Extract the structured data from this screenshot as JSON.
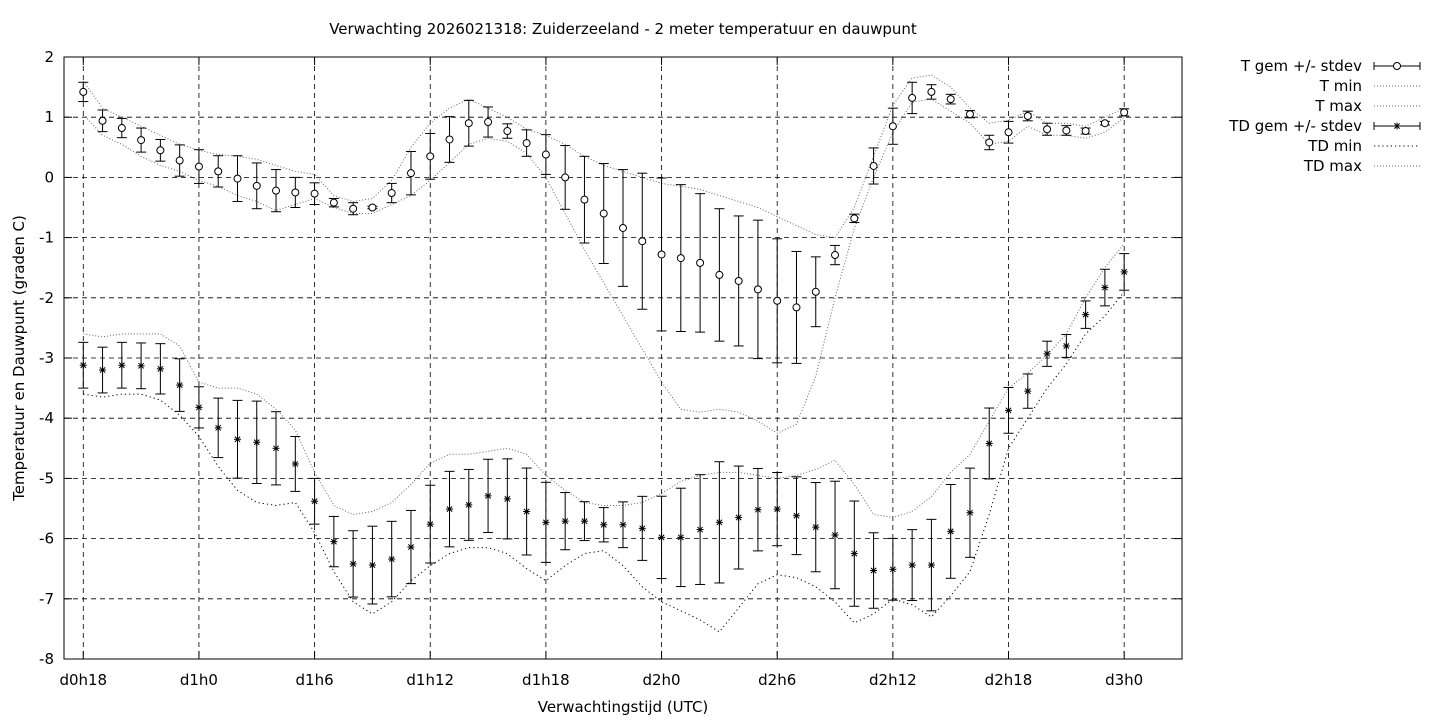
{
  "chart_data": {
    "type": "line",
    "title": "Verwachting 2026021318: Zuiderzeeland - 2 meter temperatuur en dauwpunt",
    "xlabel": "Verwachtingstijd (UTC)",
    "ylabel": "Temperatuur en Dauwpunt (graden C)",
    "xlim": [
      -1,
      57
    ],
    "ylim": [
      -8,
      2
    ],
    "y_ticks": [
      -8,
      -7,
      -6,
      -5,
      -4,
      -3,
      -2,
      -1,
      0,
      1,
      2
    ],
    "x_ticks": [
      {
        "x": 0,
        "label": "d0h18"
      },
      {
        "x": 6,
        "label": "d1h0"
      },
      {
        "x": 12,
        "label": "d1h6"
      },
      {
        "x": 18,
        "label": "d1h12"
      },
      {
        "x": 24,
        "label": "d1h18"
      },
      {
        "x": 30,
        "label": "d2h0"
      },
      {
        "x": 36,
        "label": "d2h6"
      },
      {
        "x": 42,
        "label": "d2h12"
      },
      {
        "x": 48,
        "label": "d2h18"
      },
      {
        "x": 54,
        "label": "d3h0"
      }
    ],
    "grid": true,
    "legend_position": "outside-top-right",
    "series": [
      {
        "name": "T gem +/- stdev",
        "style": "errorbar-circle",
        "x": [
          0,
          1,
          2,
          3,
          4,
          5,
          6,
          7,
          8,
          9,
          10,
          11,
          12,
          13,
          14,
          15,
          16,
          17,
          18,
          19,
          20,
          21,
          22,
          23,
          24,
          25,
          26,
          27,
          28,
          29,
          30,
          31,
          32,
          33,
          34,
          35,
          36,
          37,
          38,
          39,
          40,
          41,
          42,
          43,
          44,
          45,
          46,
          47,
          48,
          49,
          50,
          51,
          52,
          53,
          54
        ],
        "values": [
          1.42,
          0.94,
          0.82,
          0.62,
          0.45,
          0.28,
          0.18,
          0.1,
          -0.02,
          -0.14,
          -0.22,
          -0.25,
          -0.27,
          -0.42,
          -0.52,
          -0.5,
          -0.26,
          0.07,
          0.35,
          0.63,
          0.9,
          0.92,
          0.77,
          0.57,
          0.38,
          0.0,
          -0.37,
          -0.6,
          -0.84,
          -1.06,
          -1.28,
          -1.34,
          -1.42,
          -1.62,
          -1.72,
          -1.86,
          -2.05,
          -2.16,
          -1.9,
          -1.29,
          -0.68,
          0.19,
          0.85,
          1.32,
          1.42,
          1.3,
          1.05,
          0.58,
          0.75,
          1.02,
          0.8,
          0.78,
          0.77,
          0.9,
          1.08
        ],
        "stdev": [
          0.16,
          0.18,
          0.16,
          0.2,
          0.18,
          0.26,
          0.28,
          0.26,
          0.38,
          0.38,
          0.35,
          0.25,
          0.18,
          0.07,
          0.1,
          0.02,
          0.16,
          0.36,
          0.38,
          0.38,
          0.38,
          0.25,
          0.12,
          0.22,
          0.33,
          0.53,
          0.72,
          0.83,
          0.97,
          1.13,
          1.27,
          1.22,
          1.15,
          1.1,
          1.08,
          1.15,
          1.03,
          0.93,
          0.58,
          0.16,
          0.07,
          0.3,
          0.3,
          0.26,
          0.12,
          0.08,
          0.06,
          0.12,
          0.18,
          0.08,
          0.1,
          0.08,
          0.05,
          0.03,
          0.06
        ]
      },
      {
        "name": "T min",
        "style": "dotted",
        "x": [
          0,
          1,
          2,
          3,
          4,
          5,
          6,
          7,
          8,
          9,
          10,
          11,
          12,
          13,
          14,
          15,
          16,
          17,
          18,
          19,
          20,
          21,
          22,
          23,
          24,
          25,
          26,
          27,
          28,
          29,
          30,
          31,
          32,
          33,
          34,
          35,
          36,
          37,
          38,
          39,
          40,
          41,
          42,
          43,
          44,
          45,
          46,
          47,
          48,
          49,
          50,
          51,
          52,
          53,
          54
        ],
        "values": [
          1.05,
          0.7,
          0.55,
          0.35,
          0.2,
          0.1,
          -0.05,
          -0.15,
          -0.3,
          -0.4,
          -0.55,
          -0.45,
          -0.35,
          -0.5,
          -0.6,
          -0.6,
          -0.45,
          -0.3,
          -0.05,
          0.25,
          0.55,
          0.65,
          0.6,
          0.4,
          0.0,
          -0.6,
          -1.2,
          -1.75,
          -2.3,
          -2.85,
          -3.4,
          -3.85,
          -3.9,
          -3.85,
          -3.9,
          -4.05,
          -4.25,
          -4.1,
          -3.3,
          -2.0,
          -0.85,
          0.0,
          0.75,
          1.25,
          1.3,
          1.1,
          0.9,
          0.55,
          0.6,
          0.85,
          0.7,
          0.7,
          0.65,
          0.75,
          1.0
        ]
      },
      {
        "name": "T max",
        "style": "dotted",
        "x": [
          0,
          1,
          2,
          3,
          4,
          5,
          6,
          7,
          8,
          9,
          10,
          11,
          12,
          13,
          14,
          15,
          16,
          17,
          18,
          19,
          20,
          21,
          22,
          23,
          24,
          25,
          26,
          27,
          28,
          29,
          30,
          31,
          32,
          33,
          34,
          35,
          36,
          37,
          38,
          39,
          40,
          41,
          42,
          43,
          44,
          45,
          46,
          47,
          48,
          49,
          50,
          51,
          52,
          53,
          54
        ],
        "values": [
          1.6,
          1.15,
          1.0,
          0.85,
          0.7,
          0.55,
          0.45,
          0.38,
          0.35,
          0.3,
          0.2,
          0.1,
          0.05,
          -0.3,
          -0.4,
          -0.35,
          -0.05,
          0.5,
          0.9,
          1.15,
          1.3,
          1.15,
          1.0,
          0.8,
          0.7,
          0.55,
          0.35,
          0.2,
          0.1,
          0.0,
          -0.1,
          -0.15,
          -0.2,
          -0.3,
          -0.4,
          -0.5,
          -0.65,
          -0.8,
          -0.95,
          -1.0,
          -0.5,
          0.35,
          1.2,
          1.65,
          1.7,
          1.5,
          1.15,
          0.9,
          0.95,
          1.1,
          0.9,
          0.9,
          0.85,
          1.0,
          1.15
        ]
      },
      {
        "name": "TD gem +/- stdev",
        "style": "errorbar-star",
        "x": [
          0,
          1,
          2,
          3,
          4,
          5,
          6,
          7,
          8,
          9,
          10,
          11,
          12,
          13,
          14,
          15,
          16,
          17,
          18,
          19,
          20,
          21,
          22,
          23,
          24,
          25,
          26,
          27,
          28,
          29,
          30,
          31,
          32,
          33,
          34,
          35,
          36,
          37,
          38,
          39,
          40,
          41,
          42,
          43,
          44,
          45,
          46,
          47,
          48,
          49,
          50,
          51,
          52,
          53,
          54
        ],
        "values": [
          -3.12,
          -3.2,
          -3.12,
          -3.13,
          -3.18,
          -3.45,
          -3.82,
          -4.16,
          -4.35,
          -4.4,
          -4.5,
          -4.76,
          -5.38,
          -6.05,
          -6.42,
          -6.44,
          -6.34,
          -6.14,
          -5.76,
          -5.51,
          -5.44,
          -5.29,
          -5.34,
          -5.55,
          -5.73,
          -5.71,
          -5.71,
          -5.77,
          -5.77,
          -5.83,
          -5.98,
          -5.98,
          -5.85,
          -5.73,
          -5.65,
          -5.52,
          -5.51,
          -5.62,
          -5.81,
          -5.94,
          -6.25,
          -6.53,
          -6.51,
          -6.44,
          -6.44,
          -5.88,
          -5.57,
          -4.42,
          -3.87,
          -3.55,
          -2.93,
          -2.8,
          -2.28,
          -1.83,
          -1.57
        ]
      },
      {
        "name": "TD min",
        "style": "dotted",
        "x": [
          0,
          1,
          2,
          3,
          4,
          5,
          6,
          7,
          8,
          9,
          10,
          11,
          12,
          13,
          14,
          15,
          16,
          17,
          18,
          19,
          20,
          21,
          22,
          23,
          24,
          25,
          26,
          27,
          28,
          29,
          30,
          31,
          32,
          33,
          34,
          35,
          36,
          37,
          38,
          39,
          40,
          41,
          42,
          43,
          44,
          45,
          46,
          47,
          48,
          49,
          50,
          51,
          52,
          53,
          54
        ],
        "values": [
          -3.6,
          -3.65,
          -3.6,
          -3.6,
          -3.7,
          -3.95,
          -4.3,
          -4.8,
          -5.2,
          -5.4,
          -5.45,
          -5.4,
          -5.9,
          -6.55,
          -7.05,
          -7.25,
          -7.05,
          -6.7,
          -6.45,
          -6.25,
          -6.15,
          -6.15,
          -6.25,
          -6.5,
          -6.7,
          -6.45,
          -6.25,
          -6.2,
          -6.45,
          -6.8,
          -7.05,
          -7.2,
          -7.35,
          -7.55,
          -7.15,
          -6.75,
          -6.6,
          -6.65,
          -6.8,
          -7.05,
          -7.4,
          -7.25,
          -7.0,
          -7.1,
          -7.3,
          -6.95,
          -6.55,
          -5.6,
          -4.5,
          -4.0,
          -3.5,
          -3.1,
          -2.6,
          -2.3,
          -1.9
        ]
      },
      {
        "name": "TD max",
        "style": "dotted",
        "x": [
          0,
          1,
          2,
          3,
          4,
          5,
          6,
          7,
          8,
          9,
          10,
          11,
          12,
          13,
          14,
          15,
          16,
          17,
          18,
          19,
          20,
          21,
          22,
          23,
          24,
          25,
          26,
          27,
          28,
          29,
          30,
          31,
          32,
          33,
          34,
          35,
          36,
          37,
          38,
          39,
          40,
          41,
          42,
          43,
          44,
          45,
          46,
          47,
          48,
          49,
          50,
          51,
          52,
          53,
          54
        ],
        "values": [
          -2.6,
          -2.65,
          -2.6,
          -2.6,
          -2.6,
          -2.8,
          -3.4,
          -3.5,
          -3.5,
          -3.6,
          -3.85,
          -4.2,
          -4.9,
          -5.45,
          -5.6,
          -5.55,
          -5.4,
          -5.1,
          -4.75,
          -4.6,
          -4.6,
          -4.55,
          -4.5,
          -4.6,
          -4.95,
          -5.2,
          -5.4,
          -5.45,
          -5.45,
          -5.4,
          -5.25,
          -5.05,
          -4.95,
          -4.9,
          -4.9,
          -4.95,
          -5.0,
          -4.95,
          -4.85,
          -4.7,
          -5.1,
          -5.6,
          -5.65,
          -5.55,
          -5.3,
          -4.9,
          -4.6,
          -4.05,
          -3.5,
          -3.25,
          -2.95,
          -2.6,
          -2.0,
          -1.5,
          -1.1
        ]
      }
    ]
  }
}
